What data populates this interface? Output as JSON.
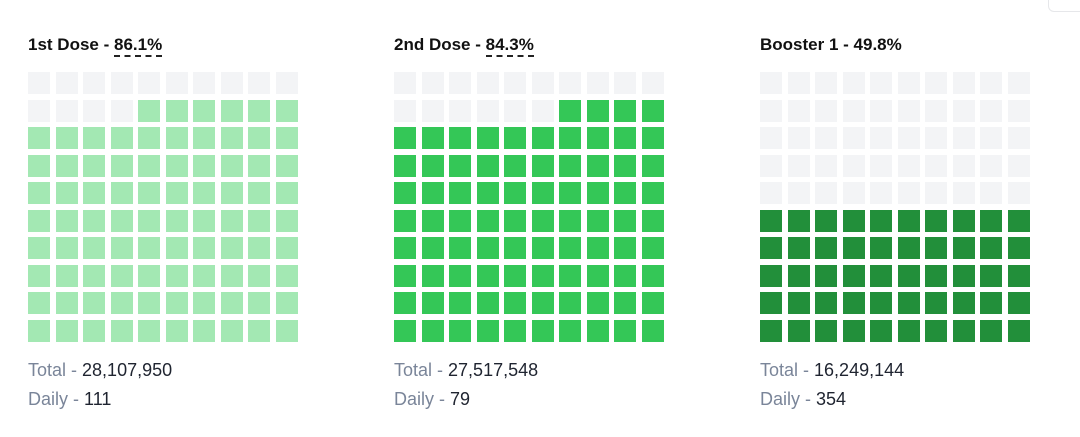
{
  "chart_data": [
    {
      "type": "waffle",
      "label": "1st Dose",
      "value_text": "86.1%",
      "filled_cells": 86,
      "total_cells": 100,
      "fill_color": "#a3e8b3",
      "empty_color": "#f3f4f6",
      "underline": true,
      "total_label": "Total",
      "total_value": "28,107,950",
      "daily_label": "Daily",
      "daily_value": "111"
    },
    {
      "type": "waffle",
      "label": "2nd Dose",
      "value_text": "84.3%",
      "filled_cells": 84,
      "total_cells": 100,
      "fill_color": "#34c757",
      "empty_color": "#f3f4f6",
      "underline": true,
      "total_label": "Total",
      "total_value": "27,517,548",
      "daily_label": "Daily",
      "daily_value": "79"
    },
    {
      "type": "waffle",
      "label": "Booster 1",
      "value_text": "49.8%",
      "filled_cells": 50,
      "total_cells": 100,
      "fill_color": "#228f3a",
      "empty_color": "#f3f4f6",
      "underline": false,
      "total_label": "Total",
      "total_value": "16,249,144",
      "daily_label": "Daily",
      "daily_value": "354"
    }
  ]
}
